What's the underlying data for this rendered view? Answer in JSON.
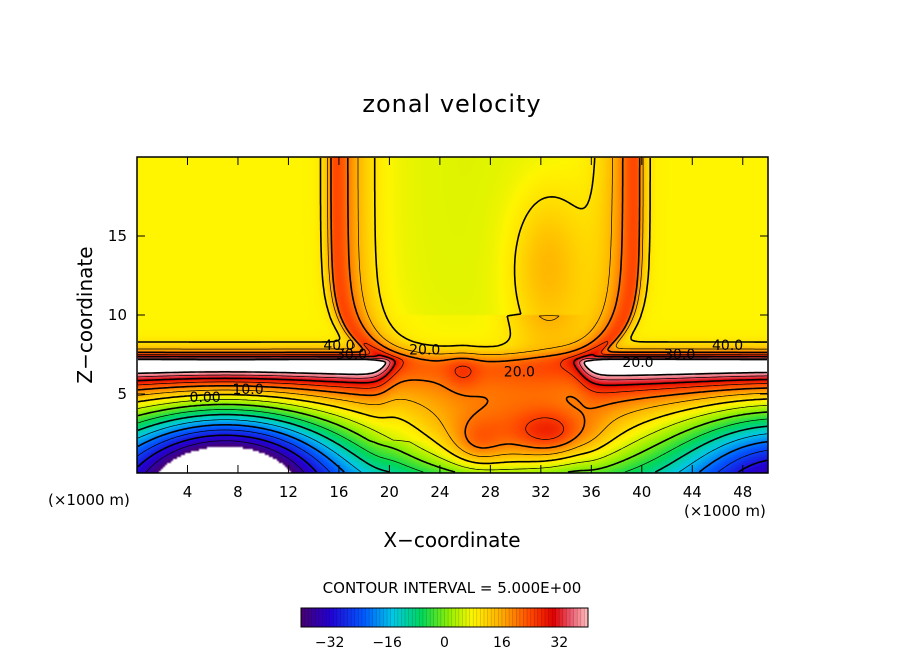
{
  "chart_data": {
    "type": "contour",
    "title": "zonal velocity",
    "xlabel": "X−coordinate",
    "ylabel": "Z−coordinate",
    "x_unit_left": "(×1000 m)",
    "x_unit_right": "(×1000 m)",
    "xlim": [
      0,
      50
    ],
    "ylim": [
      0,
      20
    ],
    "x_ticks": [
      4,
      8,
      12,
      16,
      20,
      24,
      28,
      32,
      36,
      40,
      44,
      48
    ],
    "y_ticks": [
      5,
      10,
      15
    ],
    "contour_interval_label": "CONTOUR INTERVAL = 5.000E+00",
    "contour_labels": [
      {
        "text": "40.0",
        "x": 16.0,
        "z": 7.8
      },
      {
        "text": "30.0",
        "x": 17.0,
        "z": 7.2
      },
      {
        "text": "20.0",
        "x": 22.8,
        "z": 7.5
      },
      {
        "text": "10.0",
        "x": 8.8,
        "z": 5.0
      },
      {
        "text": "0.00",
        "x": 5.4,
        "z": 4.5
      },
      {
        "text": "20.0",
        "x": 30.3,
        "z": 6.1
      },
      {
        "text": "20.0",
        "x": 39.7,
        "z": 6.7
      },
      {
        "text": "30.0",
        "x": 43.0,
        "z": 7.2
      },
      {
        "text": "40.0",
        "x": 46.8,
        "z": 7.8
      }
    ],
    "colorbar": {
      "range": [
        -40,
        40
      ],
      "ticks": [
        -32,
        -16,
        0,
        16,
        32
      ],
      "tick_labels": [
        "−32",
        "−16",
        "0",
        "16",
        "32"
      ]
    },
    "grid": false,
    "legend": "none"
  }
}
